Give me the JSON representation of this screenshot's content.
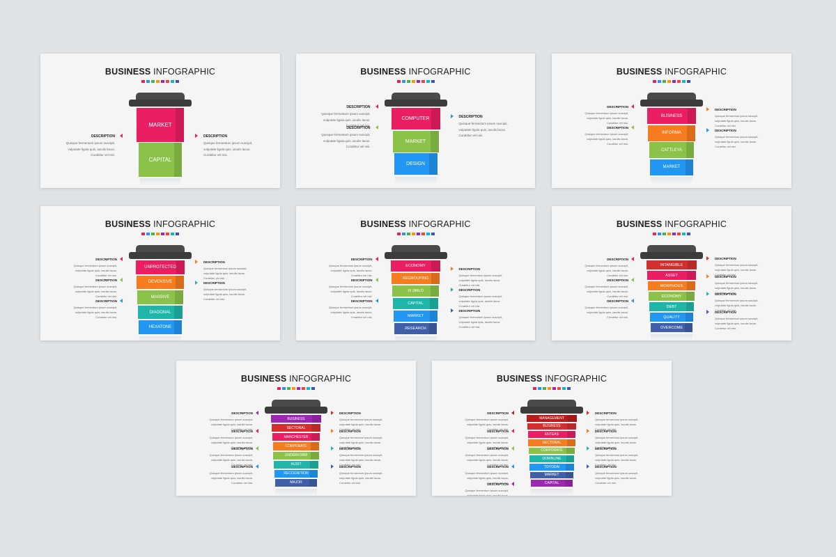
{
  "title_bold": "BUSINESS",
  "title_rest": "INFOGRAPHIC",
  "dot_colors": [
    "#e91e63",
    "#2196f3",
    "#4caf50",
    "#ff9800",
    "#9c27b0",
    "#f44336",
    "#00bcd4",
    "#3f51b5"
  ],
  "description_title": "DESCRIPTION",
  "description_lines": [
    "Quisque fermentum ipsum suscipit,",
    "vulputate ligula quis, iaculis lacus.",
    "Curabitur vel nisi."
  ],
  "slides": [
    {
      "segments": [
        {
          "label": "MARKET",
          "color": "#e91e63"
        },
        {
          "label": "CAPITAL",
          "color": "#8bc34a"
        }
      ],
      "left_arrows": [
        "#e91e63"
      ],
      "right_arrows": [
        "#e91e63"
      ]
    },
    {
      "segments": [
        {
          "label": "COMPUTER",
          "color": "#e91e63"
        },
        {
          "label": "MARKET",
          "color": "#8bc34a"
        },
        {
          "label": "DESIGN",
          "color": "#2196f3"
        }
      ],
      "left_arrows": [
        "#e91e63",
        "#8bc34a"
      ],
      "right_arrows": [
        "#2196f3"
      ]
    },
    {
      "segments": [
        {
          "label": "BUSINESS",
          "color": "#e91e63"
        },
        {
          "label": "INFORMA",
          "color": "#f57c1f"
        },
        {
          "label": "CATTLEYA",
          "color": "#8bc34a"
        },
        {
          "label": "MARKET",
          "color": "#2196f3"
        }
      ],
      "left_arrows": [
        "#e91e63",
        "#8bc34a"
      ],
      "right_arrows": [
        "#f57c1f",
        "#2196f3"
      ]
    },
    {
      "segments": [
        {
          "label": "UNPROTECTED",
          "color": "#e91e63"
        },
        {
          "label": "DEVENSIVE",
          "color": "#f57c1f"
        },
        {
          "label": "MASSIVE",
          "color": "#8bc34a"
        },
        {
          "label": "DIAGONAL",
          "color": "#1fb5a8"
        },
        {
          "label": "HEXATONE",
          "color": "#2196f3"
        }
      ],
      "left_arrows": [
        "#e91e63",
        "#8bc34a",
        "#2196f3"
      ],
      "right_arrows": [
        "#f57c1f",
        "#1fb5a8"
      ]
    },
    {
      "segments": [
        {
          "label": "ECONOMY",
          "color": "#e91e63"
        },
        {
          "label": "REGROUPING",
          "color": "#f57c1f"
        },
        {
          "label": "XI JIMLO",
          "color": "#8bc34a"
        },
        {
          "label": "CAPITAL",
          "color": "#1fb5a8"
        },
        {
          "label": "MARKET",
          "color": "#2196f3"
        },
        {
          "label": "RESEARCH",
          "color": "#3f5fa8"
        }
      ],
      "left_arrows": [
        "#e91e63",
        "#8bc34a",
        "#2196f3"
      ],
      "right_arrows": [
        "#f57c1f",
        "#1fb5a8",
        "#3f5fa8"
      ]
    },
    {
      "segments": [
        {
          "label": "INTANGIBLE",
          "color": "#d32f2f"
        },
        {
          "label": "ASSET",
          "color": "#e91e63"
        },
        {
          "label": "MORPHOUS",
          "color": "#f57c1f"
        },
        {
          "label": "ECONOMY",
          "color": "#8bc34a"
        },
        {
          "label": "DEBT",
          "color": "#1fb5a8"
        },
        {
          "label": "QUALITY",
          "color": "#2196f3"
        },
        {
          "label": "OVERCOME",
          "color": "#3f5fa8"
        }
      ],
      "left_arrows": [
        "#e91e63",
        "#8bc34a",
        "#2196f3"
      ],
      "right_arrows": [
        "#d32f2f",
        "#f57c1f",
        "#1fb5a8",
        "#3f5fa8"
      ]
    },
    {
      "segments": [
        {
          "label": "BUSINESS",
          "color": "#9c27b0"
        },
        {
          "label": "SECTORAL",
          "color": "#d32f2f"
        },
        {
          "label": "MANCHESTER",
          "color": "#e91e63"
        },
        {
          "label": "CORPORATE",
          "color": "#f57c1f"
        },
        {
          "label": "UNDERFORM",
          "color": "#8bc34a"
        },
        {
          "label": "AUDIT",
          "color": "#1fb5a8"
        },
        {
          "label": "RECOGNITION",
          "color": "#2196f3"
        },
        {
          "label": "MAJOR",
          "color": "#3f5fa8"
        }
      ],
      "left_arrows": [
        "#9c27b0",
        "#e91e63",
        "#8bc34a",
        "#2196f3"
      ],
      "right_arrows": [
        "#d32f2f",
        "#f57c1f",
        "#1fb5a8",
        "#3f5fa8"
      ]
    },
    {
      "segments": [
        {
          "label": "MANAGEMENT",
          "color": "#b71c1c"
        },
        {
          "label": "BUSINESS",
          "color": "#d32f2f"
        },
        {
          "label": "ENTEAS",
          "color": "#e91e63"
        },
        {
          "label": "SECTORAL",
          "color": "#f57c1f"
        },
        {
          "label": "CORPORATE",
          "color": "#8bc34a"
        },
        {
          "label": "DOWNLINE",
          "color": "#1fb5a8"
        },
        {
          "label": "TOYODAI",
          "color": "#2196f3"
        },
        {
          "label": "MARKET",
          "color": "#3f5fa8"
        },
        {
          "label": "CAPITAL",
          "color": "#9c27b0"
        }
      ],
      "left_arrows": [
        "#b71c1c",
        "#e91e63",
        "#8bc34a",
        "#2196f3",
        "#9c27b0"
      ],
      "right_arrows": [
        "#d32f2f",
        "#f57c1f",
        "#1fb5a8",
        "#3f5fa8"
      ]
    }
  ]
}
